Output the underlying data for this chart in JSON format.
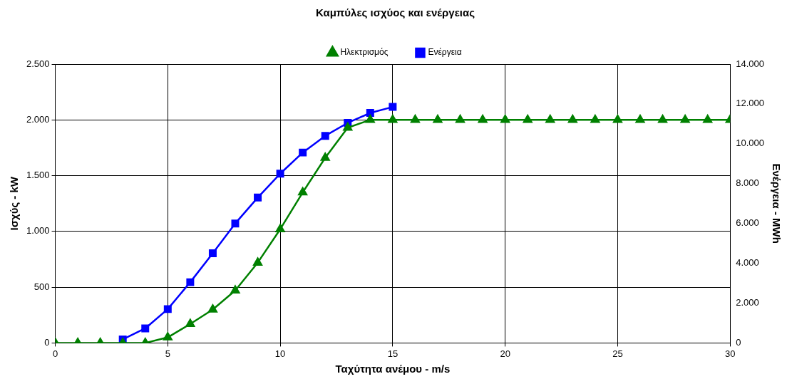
{
  "chart_data": {
    "type": "line",
    "title": "Καμπύλες ισχύος και ενέργειας",
    "xlabel": "Ταχύτητα ανέμου - m/s",
    "ylabel": "Ισχύς - kW",
    "y2label": "Ενέργεια - MWh",
    "xlim": [
      0,
      30
    ],
    "xticks": [
      0,
      5,
      10,
      15,
      20,
      25,
      30
    ],
    "ylim": [
      0,
      2500
    ],
    "yticks": [
      0,
      500,
      {
        "value": 1000,
        "label": "1.000"
      },
      {
        "value": 1500,
        "label": "1.500"
      },
      {
        "value": 2000,
        "label": "2.000"
      },
      {
        "value": 2500,
        "label": "2.500"
      }
    ],
    "y2lim": [
      0,
      14000
    ],
    "y2ticks": [
      0,
      {
        "value": 2000,
        "label": "2.000"
      },
      {
        "value": 4000,
        "label": "4.000"
      },
      {
        "value": 6000,
        "label": "6.000"
      },
      {
        "value": 8000,
        "label": "8.000"
      },
      {
        "value": 10000,
        "label": "10.000"
      },
      {
        "value": 12000,
        "label": "12.000"
      },
      {
        "value": 14000,
        "label": "14.000"
      }
    ],
    "grid": true,
    "legend": "top",
    "line_style": "solid",
    "series": [
      {
        "name": "Ηλεκτρισμός",
        "color": "#008000",
        "marker": "triangle",
        "x": [
          0,
          1,
          2,
          3,
          4,
          5,
          6,
          7,
          8,
          9,
          10,
          11,
          12,
          13,
          14,
          15,
          16,
          17,
          18,
          19,
          20,
          21,
          22,
          23,
          24,
          25,
          26,
          27,
          28,
          29,
          30
        ],
        "values": [
          0,
          0,
          0,
          0,
          0,
          50,
          170,
          300,
          470,
          720,
          1020,
          1350,
          1660,
          1930,
          2000,
          2000,
          2000,
          2000,
          2000,
          2000,
          2000,
          2000,
          2000,
          2000,
          2000,
          2000,
          2000,
          2000,
          2000,
          2000,
          2000
        ]
      },
      {
        "name": "Ενέργεια",
        "color": "#0000ff",
        "marker": "square",
        "axis": "y2",
        "x": [
          3,
          4,
          5,
          6,
          7,
          8,
          9,
          10,
          11,
          12,
          13,
          14,
          15
        ],
        "values": [
          180,
          730,
          1700,
          3050,
          4500,
          6000,
          7300,
          8500,
          9560,
          10400,
          11050,
          11550,
          11850
        ]
      }
    ]
  }
}
